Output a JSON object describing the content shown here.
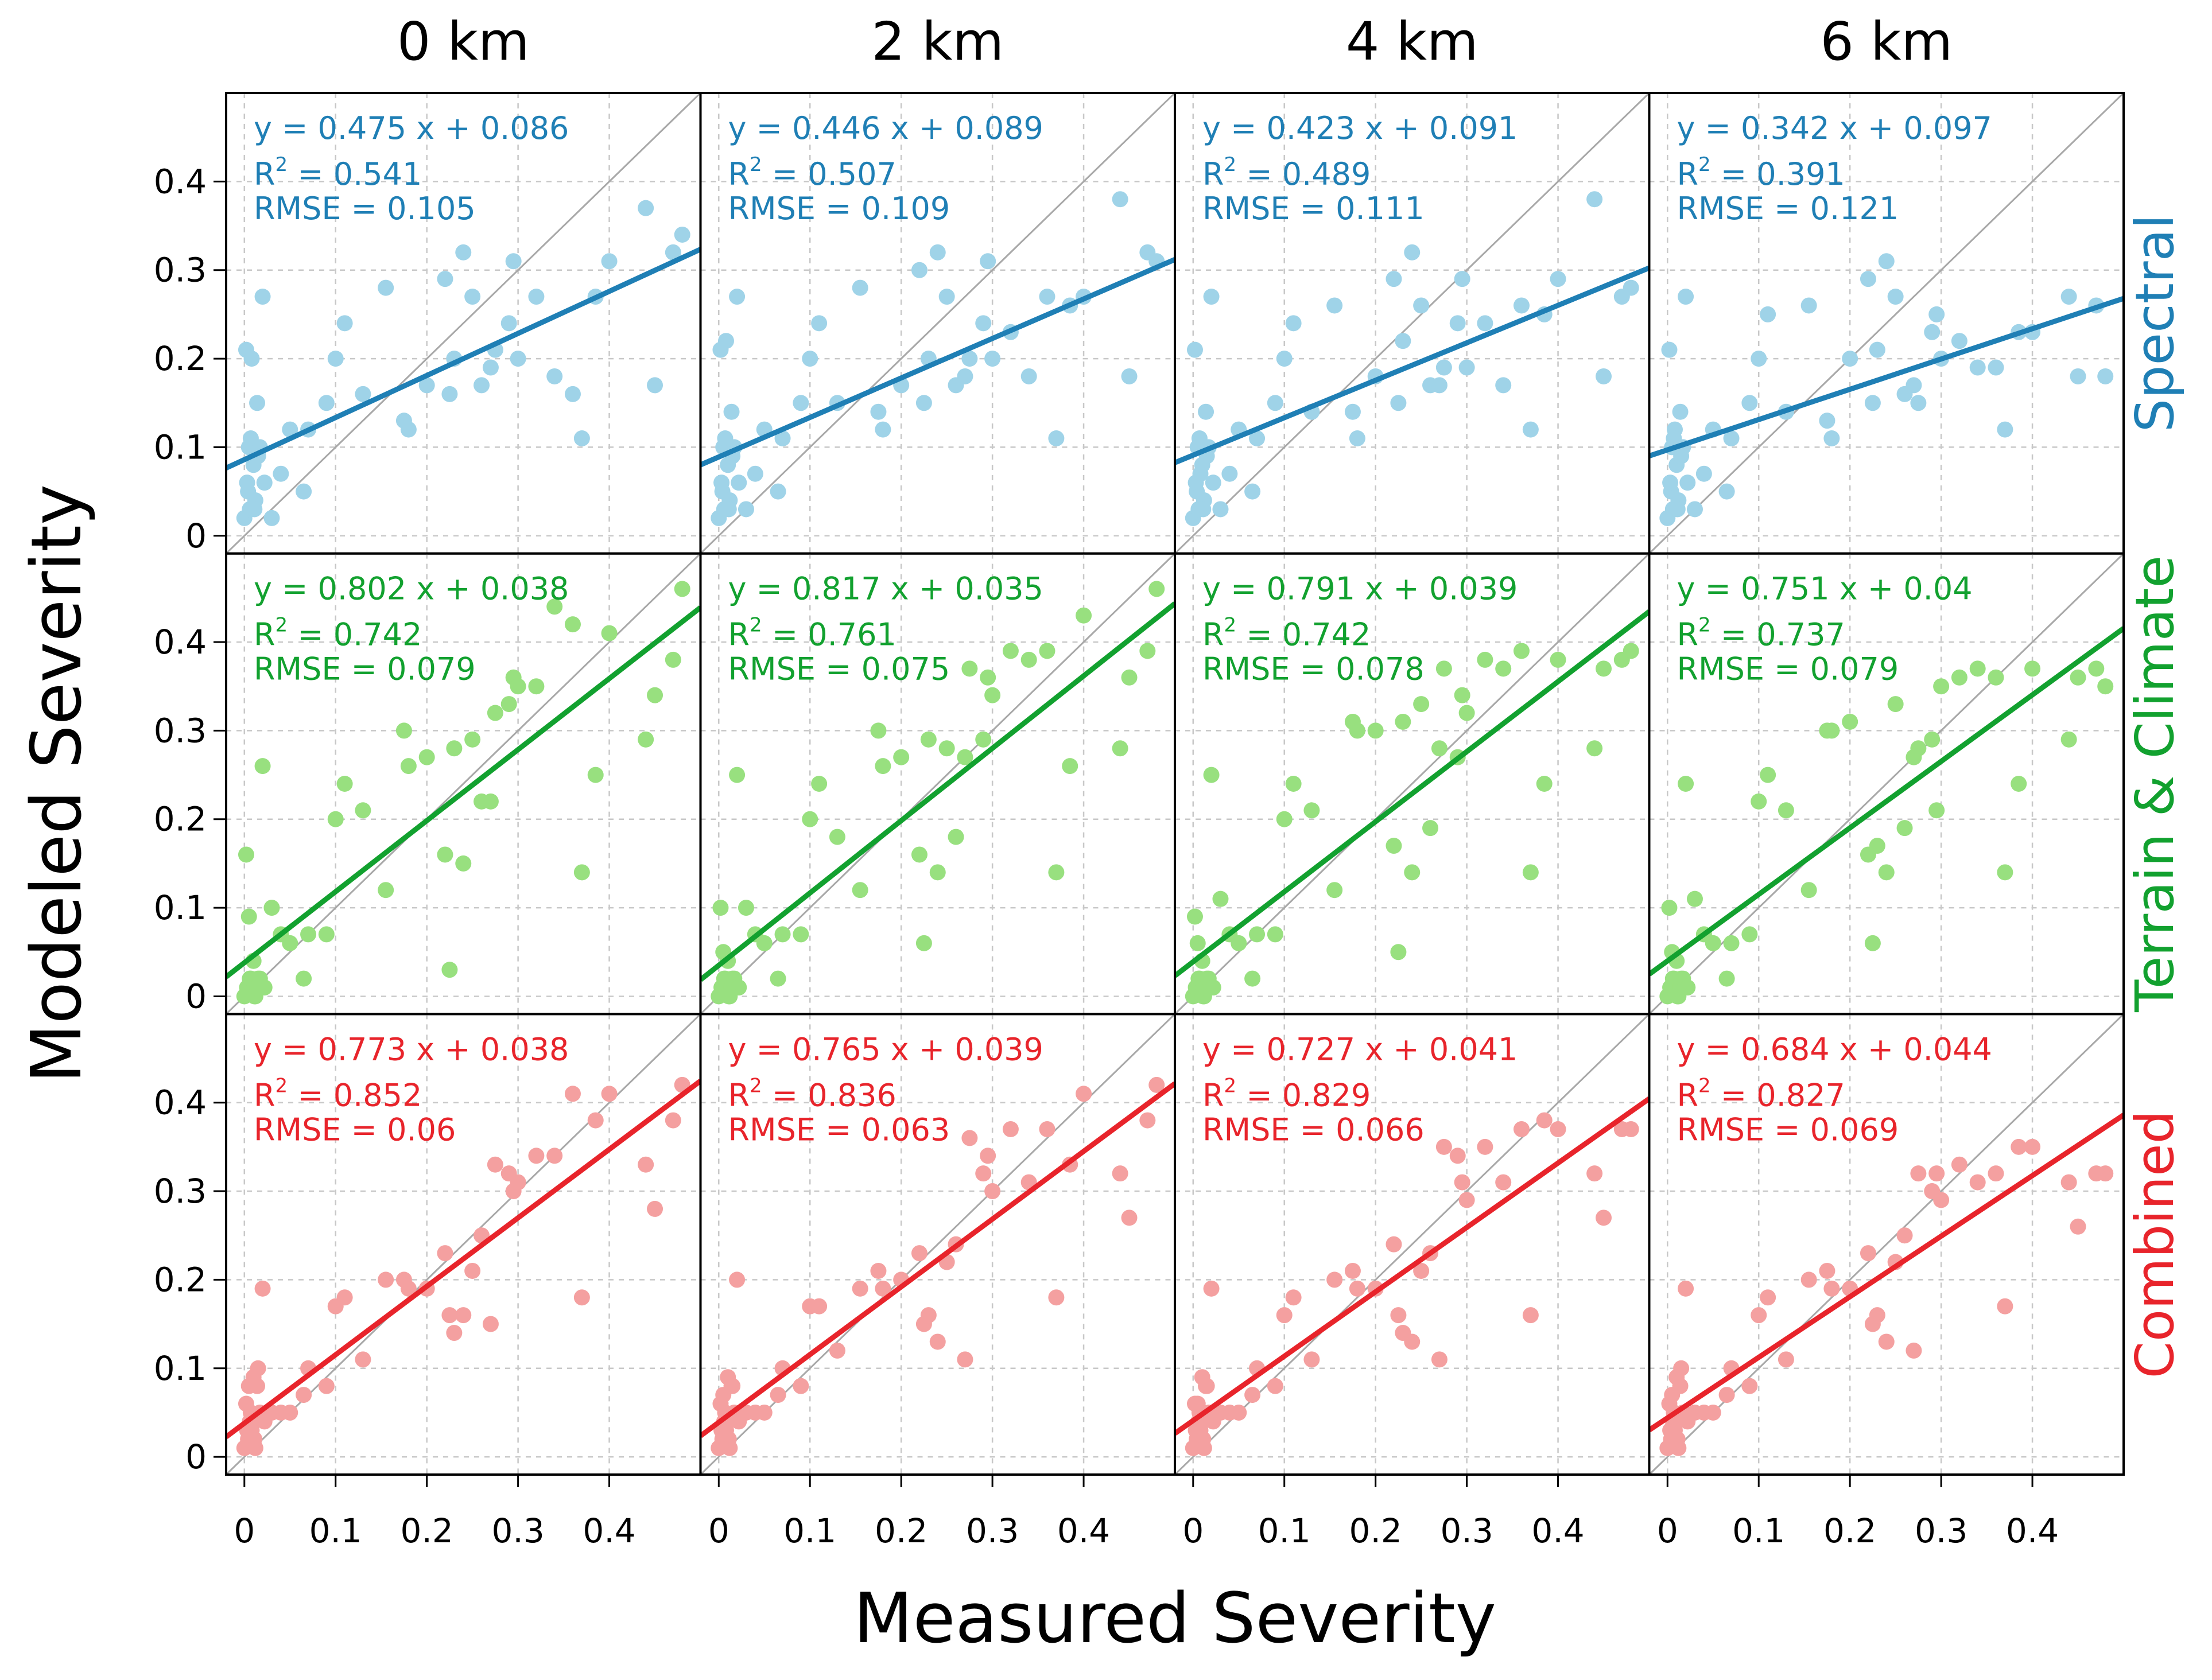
{
  "figure": {
    "column_titles": [
      "0 km",
      "2 km",
      "4 km",
      "6 km"
    ],
    "row_labels": [
      "Spectral",
      "Terrain & Climate",
      "Combined"
    ],
    "xlabel": "Measured Severity",
    "ylabel": "Modeled Severity",
    "xticks": [
      "0",
      "0.1",
      "0.2",
      "0.3",
      "0.4"
    ],
    "yticks": [
      "0",
      "0.1",
      "0.2",
      "0.3",
      "0.4"
    ],
    "r2_prefix": "R",
    "r2_superscript": "2"
  },
  "colors": {
    "Spectral": {
      "line": "#1f7fb5",
      "point": "#9fd3e8",
      "text": "#1f7fb5"
    },
    "Terrain & Climate": {
      "line": "#12a12f",
      "point": "#98e07f",
      "text": "#12a12f"
    },
    "Combined": {
      "line": "#e8242b",
      "point": "#f4a0a0",
      "text": "#e8242b"
    }
  },
  "chart_data": {
    "type": "scatter",
    "grid": true,
    "xlim": [
      -0.02,
      0.5
    ],
    "ylim": [
      -0.02,
      0.5
    ],
    "xlabel": "Measured Severity",
    "ylabel": "Modeled Severity",
    "reference_line": "1:1",
    "points": {
      "x": [
        0.0,
        0.002,
        0.004,
        0.005,
        0.006,
        0.008,
        0.01,
        0.012,
        0.015,
        0.02,
        0.003,
        0.007,
        0.011,
        0.014,
        0.017,
        0.022,
        0.03,
        0.04,
        0.05,
        0.065,
        0.07,
        0.09,
        0.1,
        0.11,
        0.13,
        0.155,
        0.175,
        0.18,
        0.2,
        0.22,
        0.225,
        0.23,
        0.24,
        0.25,
        0.26,
        0.27,
        0.275,
        0.29,
        0.295,
        0.3,
        0.32,
        0.34,
        0.36,
        0.37,
        0.385,
        0.4,
        0.44,
        0.45,
        0.47,
        0.48
      ],
      "measured_note": "Measured values are shared across all 12 panels"
    },
    "panels": [
      {
        "row": "Spectral",
        "distance": "0 km",
        "equation": "y = 0.475 x + 0.086",
        "r2": "0.541",
        "rmse": "RMSE = 0.105",
        "slope": 0.475,
        "intercept": 0.086,
        "y": [
          0.02,
          0.21,
          0.05,
          0.1,
          0.03,
          0.2,
          0.08,
          0.04,
          0.09,
          0.27,
          0.06,
          0.11,
          0.03,
          0.15,
          0.1,
          0.06,
          0.02,
          0.07,
          0.12,
          0.05,
          0.12,
          0.15,
          0.2,
          0.24,
          0.16,
          0.28,
          0.13,
          0.12,
          0.17,
          0.29,
          0.16,
          0.2,
          0.32,
          0.27,
          0.17,
          0.19,
          0.21,
          0.24,
          0.31,
          0.2,
          0.27,
          0.18,
          0.16,
          0.11,
          0.27,
          0.31,
          0.37,
          0.17,
          0.32,
          0.34
        ]
      },
      {
        "row": "Spectral",
        "distance": "2 km",
        "equation": "y = 0.446 x + 0.089",
        "r2": "0.507",
        "rmse": "RMSE = 0.109",
        "slope": 0.446,
        "intercept": 0.089,
        "y": [
          0.02,
          0.21,
          0.05,
          0.1,
          0.03,
          0.22,
          0.08,
          0.04,
          0.09,
          0.27,
          0.06,
          0.11,
          0.03,
          0.14,
          0.1,
          0.06,
          0.03,
          0.07,
          0.12,
          0.05,
          0.11,
          0.15,
          0.2,
          0.24,
          0.15,
          0.28,
          0.14,
          0.12,
          0.17,
          0.3,
          0.15,
          0.2,
          0.32,
          0.27,
          0.17,
          0.18,
          0.2,
          0.24,
          0.31,
          0.2,
          0.23,
          0.18,
          0.27,
          0.11,
          0.26,
          0.27,
          0.38,
          0.18,
          0.32,
          0.31
        ]
      },
      {
        "row": "Spectral",
        "distance": "4 km",
        "equation": "y = 0.423 x + 0.091",
        "r2": "0.489",
        "rmse": "RMSE = 0.111",
        "slope": 0.423,
        "intercept": 0.091,
        "y": [
          0.02,
          0.21,
          0.05,
          0.1,
          0.03,
          0.07,
          0.08,
          0.04,
          0.09,
          0.27,
          0.06,
          0.11,
          0.03,
          0.14,
          0.1,
          0.06,
          0.03,
          0.07,
          0.12,
          0.05,
          0.11,
          0.15,
          0.2,
          0.24,
          0.14,
          0.26,
          0.14,
          0.11,
          0.18,
          0.29,
          0.15,
          0.22,
          0.32,
          0.26,
          0.17,
          0.17,
          0.19,
          0.24,
          0.29,
          0.19,
          0.24,
          0.17,
          0.26,
          0.12,
          0.25,
          0.29,
          0.38,
          0.18,
          0.27,
          0.28
        ]
      },
      {
        "row": "Spectral",
        "distance": "6 km",
        "equation": "y = 0.342 x + 0.097",
        "r2": "0.391",
        "rmse": "RMSE = 0.121",
        "slope": 0.342,
        "intercept": 0.097,
        "y": [
          0.02,
          0.21,
          0.05,
          0.1,
          0.03,
          0.12,
          0.08,
          0.04,
          0.09,
          0.27,
          0.06,
          0.11,
          0.03,
          0.14,
          0.1,
          0.06,
          0.03,
          0.07,
          0.12,
          0.05,
          0.11,
          0.15,
          0.2,
          0.25,
          0.14,
          0.26,
          0.13,
          0.11,
          0.2,
          0.29,
          0.15,
          0.21,
          0.31,
          0.27,
          0.16,
          0.17,
          0.15,
          0.23,
          0.25,
          0.2,
          0.22,
          0.19,
          0.19,
          0.12,
          0.23,
          0.23,
          0.27,
          0.18,
          0.26,
          0.18
        ]
      },
      {
        "row": "Terrain & Climate",
        "distance": "0 km",
        "equation": "y = 0.802 x + 0.038",
        "r2": "0.742",
        "rmse": "RMSE = 0.079",
        "slope": 0.802,
        "intercept": 0.038,
        "y": [
          0.0,
          0.16,
          0.01,
          0.09,
          0.02,
          0.01,
          0.04,
          0.0,
          0.02,
          0.26,
          0.01,
          0.02,
          0.0,
          0.01,
          0.02,
          0.01,
          0.1,
          0.07,
          0.06,
          0.02,
          0.07,
          0.07,
          0.2,
          0.24,
          0.21,
          0.12,
          0.3,
          0.26,
          0.27,
          0.16,
          0.03,
          0.28,
          0.15,
          0.29,
          0.22,
          0.22,
          0.32,
          0.33,
          0.36,
          0.35,
          0.35,
          0.44,
          0.42,
          0.14,
          0.25,
          0.41,
          0.29,
          0.34,
          0.38,
          0.46
        ]
      },
      {
        "row": "Terrain & Climate",
        "distance": "2 km",
        "equation": "y = 0.817 x + 0.035",
        "r2": "0.761",
        "rmse": "RMSE = 0.075",
        "slope": 0.817,
        "intercept": 0.035,
        "y": [
          0.0,
          0.1,
          0.01,
          0.05,
          0.02,
          0.01,
          0.04,
          0.0,
          0.02,
          0.25,
          0.01,
          0.02,
          0.0,
          0.01,
          0.02,
          0.01,
          0.1,
          0.07,
          0.06,
          0.02,
          0.07,
          0.07,
          0.2,
          0.24,
          0.18,
          0.12,
          0.3,
          0.26,
          0.27,
          0.16,
          0.06,
          0.29,
          0.14,
          0.28,
          0.18,
          0.27,
          0.37,
          0.29,
          0.36,
          0.34,
          0.39,
          0.38,
          0.39,
          0.14,
          0.26,
          0.43,
          0.28,
          0.36,
          0.39,
          0.46
        ]
      },
      {
        "row": "Terrain & Climate",
        "distance": "4 km",
        "equation": "y = 0.791 x + 0.039",
        "r2": "0.742",
        "rmse": "RMSE = 0.078",
        "slope": 0.791,
        "intercept": 0.039,
        "y": [
          0.0,
          0.09,
          0.01,
          0.06,
          0.02,
          0.01,
          0.04,
          0.0,
          0.02,
          0.25,
          0.01,
          0.02,
          0.0,
          0.01,
          0.02,
          0.01,
          0.11,
          0.07,
          0.06,
          0.02,
          0.07,
          0.07,
          0.2,
          0.24,
          0.21,
          0.12,
          0.31,
          0.3,
          0.3,
          0.17,
          0.05,
          0.31,
          0.14,
          0.33,
          0.19,
          0.28,
          0.37,
          0.27,
          0.34,
          0.32,
          0.38,
          0.37,
          0.39,
          0.14,
          0.24,
          0.38,
          0.28,
          0.37,
          0.38,
          0.39
        ]
      },
      {
        "row": "Terrain & Climate",
        "distance": "6 km",
        "equation": "y = 0.751 x + 0.04",
        "r2": "0.737",
        "rmse": "RMSE = 0.079",
        "slope": 0.751,
        "intercept": 0.04,
        "y": [
          0.0,
          0.1,
          0.01,
          0.05,
          0.02,
          0.01,
          0.04,
          0.0,
          0.02,
          0.24,
          0.01,
          0.02,
          0.0,
          0.01,
          0.02,
          0.01,
          0.11,
          0.07,
          0.06,
          0.02,
          0.06,
          0.07,
          0.22,
          0.25,
          0.21,
          0.12,
          0.3,
          0.3,
          0.31,
          0.16,
          0.06,
          0.17,
          0.14,
          0.33,
          0.19,
          0.27,
          0.28,
          0.29,
          0.21,
          0.35,
          0.36,
          0.37,
          0.36,
          0.14,
          0.24,
          0.37,
          0.29,
          0.36,
          0.37,
          0.35
        ]
      },
      {
        "row": "Combined",
        "distance": "0 km",
        "equation": "y = 0.773 x + 0.038",
        "r2": "0.852",
        "rmse": "RMSE = 0.06",
        "slope": 0.773,
        "intercept": 0.038,
        "y": [
          0.01,
          0.06,
          0.02,
          0.08,
          0.04,
          0.03,
          0.09,
          0.01,
          0.1,
          0.19,
          0.03,
          0.05,
          0.02,
          0.08,
          0.05,
          0.04,
          0.05,
          0.05,
          0.05,
          0.07,
          0.1,
          0.08,
          0.17,
          0.18,
          0.11,
          0.2,
          0.2,
          0.19,
          0.19,
          0.23,
          0.16,
          0.14,
          0.16,
          0.21,
          0.25,
          0.15,
          0.33,
          0.32,
          0.3,
          0.31,
          0.34,
          0.34,
          0.41,
          0.18,
          0.38,
          0.41,
          0.33,
          0.28,
          0.38,
          0.42
        ]
      },
      {
        "row": "Combined",
        "distance": "2 km",
        "equation": "y = 0.765 x + 0.039",
        "r2": "0.836",
        "rmse": "RMSE = 0.063",
        "slope": 0.765,
        "intercept": 0.039,
        "y": [
          0.01,
          0.06,
          0.02,
          0.07,
          0.04,
          0.03,
          0.09,
          0.01,
          0.08,
          0.2,
          0.03,
          0.05,
          0.02,
          0.08,
          0.05,
          0.04,
          0.05,
          0.05,
          0.05,
          0.07,
          0.1,
          0.08,
          0.17,
          0.17,
          0.12,
          0.19,
          0.21,
          0.19,
          0.2,
          0.23,
          0.15,
          0.16,
          0.13,
          0.22,
          0.24,
          0.11,
          0.36,
          0.32,
          0.34,
          0.3,
          0.37,
          0.31,
          0.37,
          0.18,
          0.33,
          0.41,
          0.32,
          0.27,
          0.38,
          0.42
        ]
      },
      {
        "row": "Combined",
        "distance": "4 km",
        "equation": "y = 0.727 x + 0.041",
        "r2": "0.829",
        "rmse": "RMSE = 0.066",
        "slope": 0.727,
        "intercept": 0.041,
        "y": [
          0.01,
          0.06,
          0.02,
          0.06,
          0.04,
          0.03,
          0.09,
          0.01,
          0.08,
          0.19,
          0.03,
          0.05,
          0.02,
          0.08,
          0.05,
          0.04,
          0.05,
          0.05,
          0.05,
          0.07,
          0.1,
          0.08,
          0.16,
          0.18,
          0.11,
          0.2,
          0.21,
          0.19,
          0.19,
          0.24,
          0.16,
          0.14,
          0.13,
          0.21,
          0.23,
          0.11,
          0.35,
          0.34,
          0.31,
          0.29,
          0.35,
          0.31,
          0.37,
          0.16,
          0.38,
          0.37,
          0.32,
          0.27,
          0.37,
          0.37
        ]
      },
      {
        "row": "Combined",
        "distance": "6 km",
        "equation": "y = 0.684 x + 0.044",
        "r2": "0.827",
        "rmse": "RMSE = 0.069",
        "slope": 0.684,
        "intercept": 0.044,
        "y": [
          0.01,
          0.06,
          0.02,
          0.07,
          0.04,
          0.03,
          0.09,
          0.01,
          0.1,
          0.19,
          0.03,
          0.05,
          0.02,
          0.08,
          0.05,
          0.04,
          0.05,
          0.05,
          0.05,
          0.07,
          0.1,
          0.08,
          0.16,
          0.18,
          0.11,
          0.2,
          0.21,
          0.19,
          0.19,
          0.23,
          0.15,
          0.16,
          0.13,
          0.22,
          0.25,
          0.12,
          0.32,
          0.3,
          0.32,
          0.29,
          0.33,
          0.31,
          0.32,
          0.17,
          0.35,
          0.35,
          0.31,
          0.26,
          0.32,
          0.32
        ]
      }
    ]
  }
}
